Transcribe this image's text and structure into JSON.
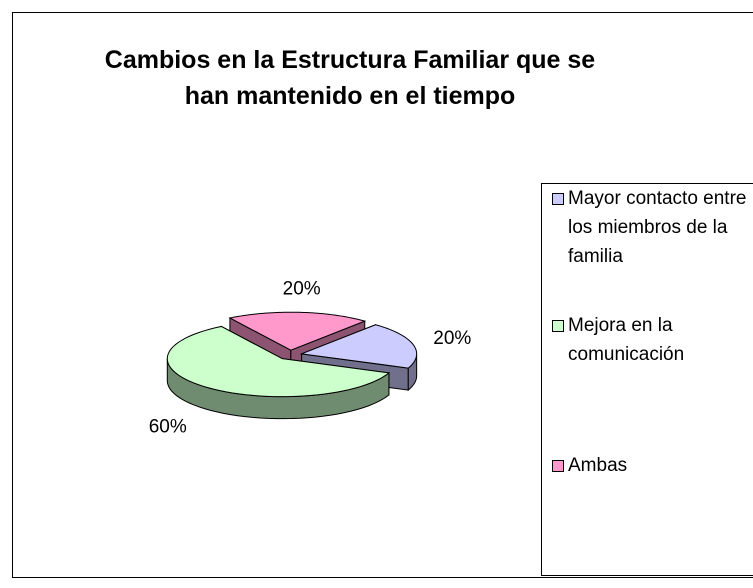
{
  "chart_data": {
    "type": "pie",
    "title": "Cambios en la Estructura Familiar que se han mantenido en el tiempo",
    "categories": [
      "Mayor contacto entre los miembros de la familia",
      "Mejora en la comunicación",
      "Ambas"
    ],
    "values": [
      20,
      60,
      20
    ],
    "value_labels": [
      "20%",
      "60%",
      "20%"
    ],
    "colors": [
      "#ccccff",
      "#ccffcc",
      "#ff99cc"
    ],
    "legend": "right"
  }
}
